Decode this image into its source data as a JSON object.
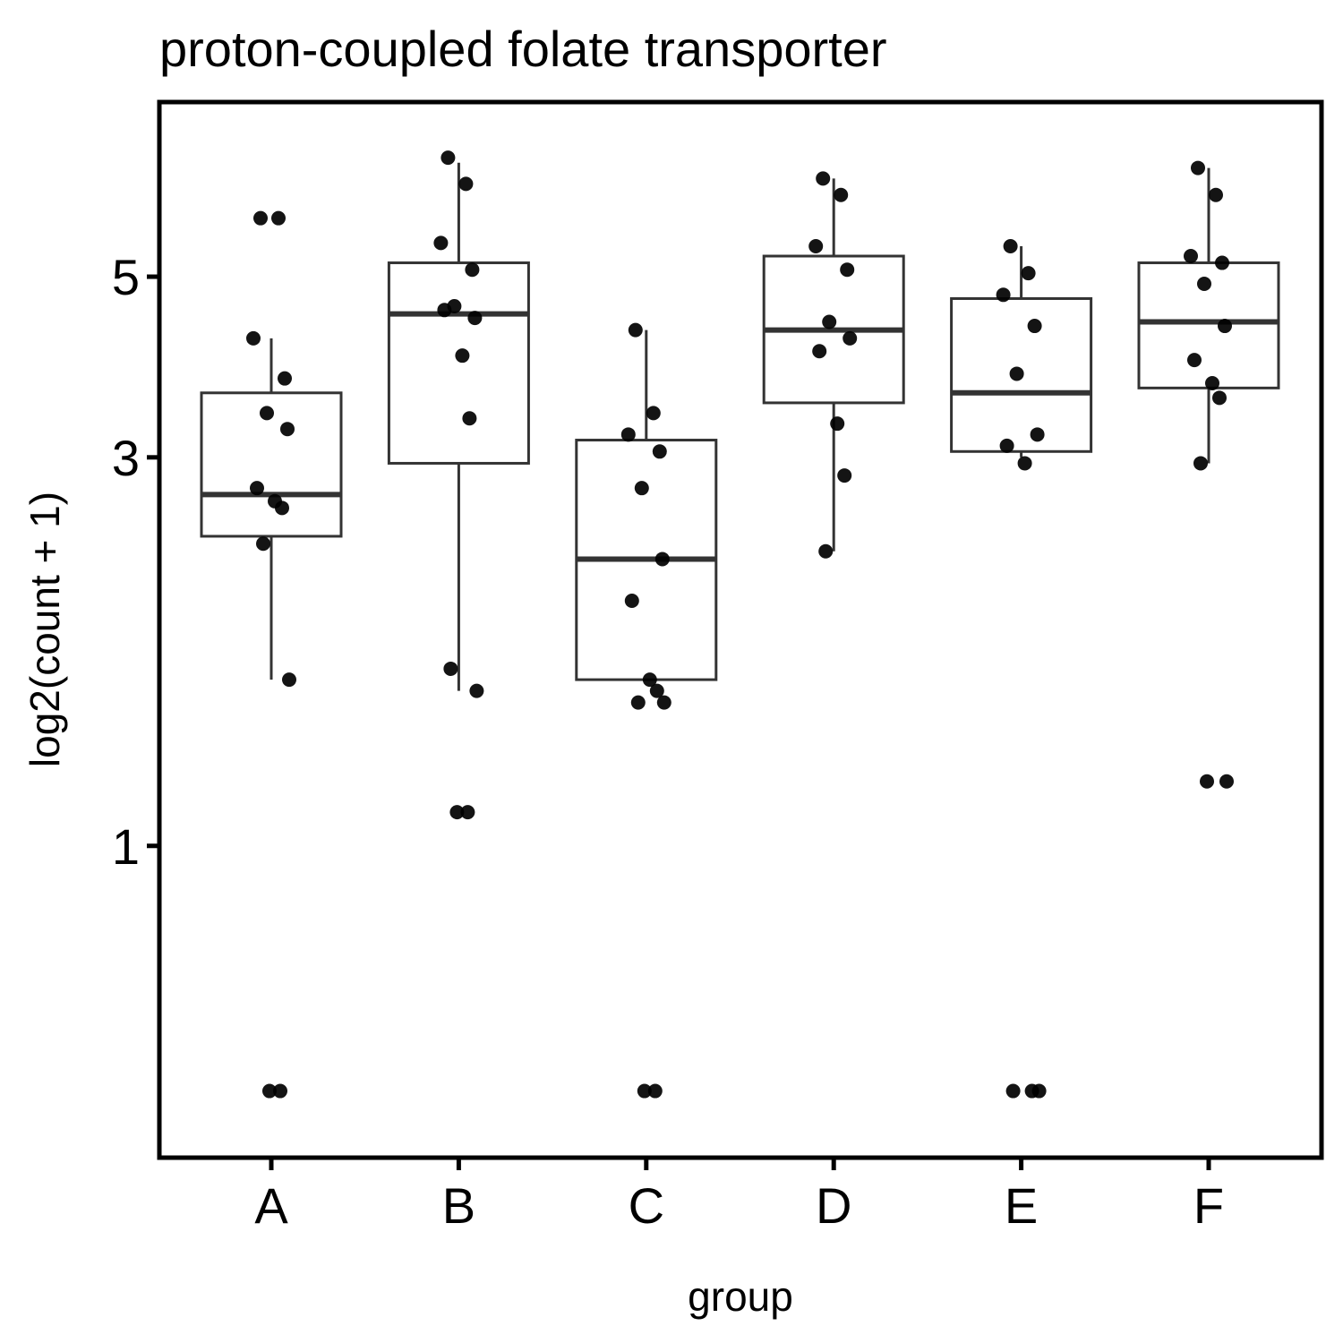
{
  "chart_data": {
    "type": "boxplot",
    "title": "proton-coupled folate transporter",
    "xlabel": "group",
    "ylabel": "log2(count + 1)",
    "y_scale": "log2",
    "y_ticks": [
      1,
      3,
      5
    ],
    "y_tick_labels": [
      "1",
      "3",
      "5"
    ],
    "y_range": [
      0.47,
      7.2
    ],
    "categories": [
      "A",
      "B",
      "C",
      "D",
      "E",
      "F"
    ],
    "colors": {
      "box_stroke": "#333333",
      "points": "#000000",
      "axis": "#000000"
    },
    "boxes": [
      {
        "group": "A",
        "q1": 2.4,
        "median": 2.7,
        "q3": 3.6,
        "whisker_low": 1.6,
        "whisker_high": 4.2
      },
      {
        "group": "B",
        "q1": 2.95,
        "median": 4.5,
        "q3": 5.2,
        "whisker_low": 1.55,
        "whisker_high": 6.9
      },
      {
        "group": "C",
        "q1": 1.6,
        "median": 2.25,
        "q3": 3.15,
        "whisker_low": 1.6,
        "whisker_high": 4.3
      },
      {
        "group": "D",
        "q1": 3.5,
        "median": 4.3,
        "q3": 5.3,
        "whisker_low": 2.3,
        "whisker_high": 6.6
      },
      {
        "group": "E",
        "q1": 3.05,
        "median": 3.6,
        "q3": 4.7,
        "whisker_low": 3.0,
        "whisker_high": 5.45
      },
      {
        "group": "F",
        "q1": 3.65,
        "median": 4.4,
        "q3": 5.2,
        "whisker_low": 2.95,
        "whisker_high": 6.8
      }
    ],
    "points": [
      {
        "group": "A",
        "values": [
          5.9,
          5.9,
          4.2,
          3.75,
          3.4,
          3.25,
          2.75,
          2.65,
          2.6,
          2.35,
          1.6,
          0.5,
          0.5
        ]
      },
      {
        "group": "B",
        "values": [
          7.0,
          6.5,
          5.5,
          5.1,
          4.6,
          4.45,
          4.55,
          4.0,
          3.35,
          1.65,
          1.55,
          1.1,
          1.1
        ]
      },
      {
        "group": "C",
        "values": [
          4.3,
          3.4,
          3.2,
          3.05,
          2.75,
          2.25,
          2.0,
          1.6,
          1.55,
          1.5,
          1.5,
          0.5,
          0.5
        ]
      },
      {
        "group": "D",
        "values": [
          6.6,
          6.3,
          5.45,
          5.1,
          4.4,
          4.2,
          4.05,
          3.3,
          2.85,
          2.3
        ]
      },
      {
        "group": "E",
        "values": [
          5.45,
          5.05,
          4.75,
          4.35,
          3.8,
          3.2,
          3.1,
          2.95,
          0.5,
          0.5,
          0.5
        ]
      },
      {
        "group": "F",
        "values": [
          6.8,
          6.3,
          5.3,
          5.2,
          4.9,
          4.35,
          3.95,
          3.7,
          3.55,
          2.95,
          1.2,
          1.2
        ]
      }
    ]
  }
}
